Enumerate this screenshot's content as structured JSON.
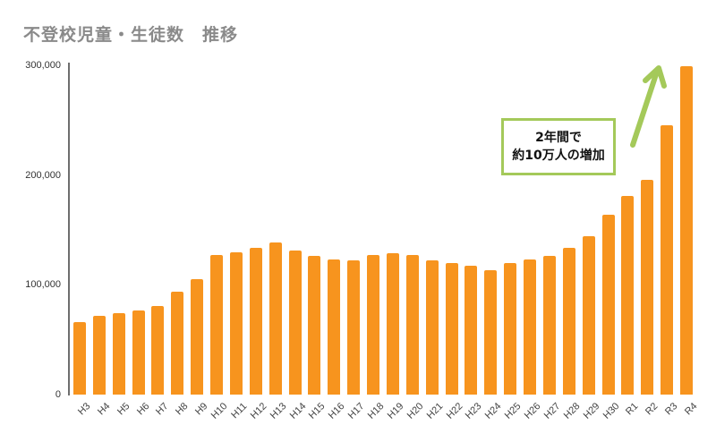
{
  "chart_data": {
    "type": "bar",
    "title": "不登校児童・生徒数　推移",
    "xlabel": "",
    "ylabel": "",
    "ylim": [
      0,
      300000
    ],
    "yticks": [
      0,
      100000,
      200000,
      300000
    ],
    "ytick_labels": [
      "0",
      "100,000",
      "200,000",
      "300,000"
    ],
    "grid": false,
    "legend": null,
    "bar_color": "#f7941e",
    "categories": [
      "H3",
      "H4",
      "H5",
      "H6",
      "H7",
      "H8",
      "H9",
      "H10",
      "H11",
      "H12",
      "H13",
      "H14",
      "H15",
      "H16",
      "H17",
      "H18",
      "H19",
      "H20",
      "H21",
      "H22",
      "H23",
      "H24",
      "H25",
      "H26",
      "H27",
      "H28",
      "H29",
      "H30",
      "R1",
      "R2",
      "R3",
      "R4"
    ],
    "values": [
      66000,
      72000,
      74000,
      77000,
      81000,
      94000,
      105000,
      127000,
      130000,
      134000,
      139000,
      131000,
      126000,
      123000,
      122000,
      127000,
      129000,
      127000,
      122000,
      120000,
      117000,
      113000,
      120000,
      123000,
      126000,
      134000,
      144000,
      164000,
      181000,
      196000,
      245000,
      299000
    ],
    "annotations": [
      {
        "text_line1": "2年間で",
        "text_line2": "約10万人の増加",
        "border_color": "#a4c95a",
        "arrow_color": "#a4c95a"
      }
    ]
  }
}
